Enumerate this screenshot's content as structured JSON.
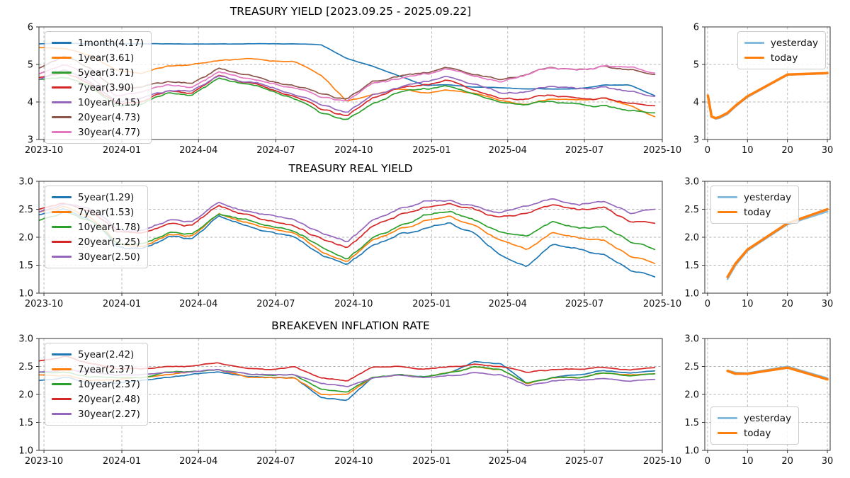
{
  "chart_data": [
    {
      "id": "treasury-yield-history",
      "type": "line",
      "title": "TREASURY YIELD [2023.09.25 - 2025.09.22]",
      "x_type": "time",
      "x_ticks": [
        {
          "f": 0.008,
          "label": "2023-10"
        },
        {
          "f": 0.133,
          "label": "2024-01"
        },
        {
          "f": 0.256,
          "label": "2024-04"
        },
        {
          "f": 0.38,
          "label": "2024-07"
        },
        {
          "f": 0.505,
          "label": "2024-10"
        },
        {
          "f": 0.63,
          "label": "2025-01"
        },
        {
          "f": 0.752,
          "label": "2025-04"
        },
        {
          "f": 0.875,
          "label": "2025-07"
        },
        {
          "f": 1.0,
          "label": "2025-10"
        }
      ],
      "x_data_end": 0.988,
      "ylim": [
        3,
        6
      ],
      "y_ticks": [
        {
          "v": 3,
          "label": "3"
        },
        {
          "v": 4,
          "label": "4"
        },
        {
          "v": 5,
          "label": "5"
        },
        {
          "v": 6,
          "label": "6"
        }
      ],
      "grid": true,
      "legend_position": "upper-left",
      "series": [
        {
          "name": "1month(4.17)",
          "color": "#1f77b4",
          "smooth": 0.2,
          "values": [
            5.55,
            5.56,
            5.55,
            5.55,
            5.55,
            5.55,
            5.55,
            5.55,
            5.55,
            5.55,
            5.55,
            5.52,
            5.15,
            4.95,
            4.7,
            4.45,
            4.45,
            4.4,
            4.38,
            4.35,
            4.35,
            4.35,
            4.45,
            4.45,
            4.17
          ]
        },
        {
          "name": "1year(3.61)",
          "color": "#ff7f0e",
          "smooth": 0.6,
          "values": [
            5.45,
            5.42,
            5.25,
            4.85,
            4.75,
            4.95,
            5.0,
            5.1,
            5.15,
            5.1,
            5.08,
            4.7,
            4.0,
            4.2,
            4.35,
            4.25,
            4.3,
            4.25,
            4.05,
            3.95,
            4.1,
            4.05,
            4.1,
            3.9,
            3.61
          ]
        },
        {
          "name": "5year(3.71)",
          "color": "#2ca02c",
          "smooth": 1,
          "values": [
            4.6,
            4.65,
            4.45,
            3.9,
            3.95,
            4.25,
            4.2,
            4.65,
            4.5,
            4.3,
            4.1,
            3.7,
            3.5,
            3.95,
            4.25,
            4.35,
            4.4,
            4.25,
            4.0,
            3.95,
            4.05,
            3.95,
            3.9,
            3.75,
            3.71
          ]
        },
        {
          "name": "7year(3.90)",
          "color": "#d62728",
          "smooth": 1,
          "values": [
            4.65,
            4.75,
            4.5,
            3.95,
            4.0,
            4.3,
            4.25,
            4.7,
            4.55,
            4.35,
            4.15,
            3.8,
            3.6,
            4.1,
            4.35,
            4.45,
            4.55,
            4.35,
            4.1,
            4.1,
            4.2,
            4.1,
            4.1,
            3.95,
            3.9
          ]
        },
        {
          "name": "10year(4.15)",
          "color": "#9467bd",
          "smooth": 1,
          "values": [
            4.6,
            4.85,
            4.55,
            4.0,
            4.1,
            4.3,
            4.3,
            4.7,
            4.55,
            4.4,
            4.2,
            3.9,
            3.7,
            4.2,
            4.4,
            4.55,
            4.65,
            4.5,
            4.25,
            4.3,
            4.45,
            4.35,
            4.4,
            4.25,
            4.15
          ]
        },
        {
          "name": "20year(4.73)",
          "color": "#8c564b",
          "smooth": 1,
          "values": [
            4.9,
            5.2,
            4.9,
            4.3,
            4.4,
            4.55,
            4.5,
            4.9,
            4.75,
            4.55,
            4.45,
            4.2,
            4.05,
            4.55,
            4.7,
            4.8,
            4.9,
            4.75,
            4.6,
            4.75,
            4.95,
            4.85,
            4.95,
            4.85,
            4.73
          ]
        },
        {
          "name": "30year(4.77)",
          "color": "#e377c2",
          "smooth": 1,
          "values": [
            4.75,
            5.0,
            4.7,
            4.15,
            4.25,
            4.45,
            4.4,
            4.8,
            4.65,
            4.5,
            4.4,
            4.1,
            4.0,
            4.5,
            4.6,
            4.75,
            4.85,
            4.7,
            4.55,
            4.75,
            4.95,
            4.85,
            4.95,
            4.9,
            4.77
          ]
        }
      ]
    },
    {
      "id": "yield-curve",
      "type": "line",
      "title": "",
      "x_type": "value",
      "xlim": [
        -0.7,
        30.7
      ],
      "x_ticks": [
        {
          "v": 0,
          "label": "0"
        },
        {
          "v": 10,
          "label": "10"
        },
        {
          "v": 20,
          "label": "20"
        },
        {
          "v": 30,
          "label": "30"
        }
      ],
      "ylim": [
        3,
        6
      ],
      "y_ticks": [
        {
          "v": 3,
          "label": "3"
        },
        {
          "v": 4,
          "label": "4"
        },
        {
          "v": 5,
          "label": "5"
        },
        {
          "v": 6,
          "label": "6"
        }
      ],
      "grid": true,
      "legend_position": "upper-right",
      "series": [
        {
          "name": "yesterday",
          "color": "#85bcdd",
          "lw": 2.5,
          "x": [
            0.08,
            1,
            2,
            3,
            5,
            7,
            10,
            20,
            30
          ],
          "values": [
            4.18,
            3.62,
            3.55,
            3.57,
            3.68,
            3.88,
            4.13,
            4.72,
            4.76
          ]
        },
        {
          "name": "today",
          "color": "#ff7f0e",
          "lw": 3.5,
          "x": [
            0.08,
            1,
            2,
            3,
            5,
            7,
            10,
            20,
            30
          ],
          "values": [
            4.17,
            3.61,
            3.57,
            3.6,
            3.71,
            3.9,
            4.15,
            4.73,
            4.77
          ]
        }
      ]
    },
    {
      "id": "treasury-real-yield-history",
      "type": "line",
      "title": "TREASURY REAL YIELD",
      "x_type": "time",
      "x_ticks": [
        {
          "f": 0.008,
          "label": "2023-10"
        },
        {
          "f": 0.133,
          "label": "2024-01"
        },
        {
          "f": 0.256,
          "label": "2024-04"
        },
        {
          "f": 0.38,
          "label": "2024-07"
        },
        {
          "f": 0.505,
          "label": "2024-10"
        },
        {
          "f": 0.63,
          "label": "2025-01"
        },
        {
          "f": 0.752,
          "label": "2025-04"
        },
        {
          "f": 0.875,
          "label": "2025-07"
        },
        {
          "f": 1.0,
          "label": "2025-10"
        }
      ],
      "x_data_end": 0.988,
      "ylim": [
        1.0,
        3.0
      ],
      "y_ticks": [
        {
          "v": 1.0,
          "label": "1.0"
        },
        {
          "v": 1.5,
          "label": "1.5"
        },
        {
          "v": 2.0,
          "label": "2.0"
        },
        {
          "v": 2.5,
          "label": "2.5"
        },
        {
          "v": 3.0,
          "label": "3.0"
        }
      ],
      "grid": true,
      "legend_position": "upper-left",
      "series": [
        {
          "name": "5year(1.29)",
          "color": "#1f77b4",
          "smooth": 1,
          "values": [
            2.4,
            2.5,
            2.3,
            1.85,
            1.75,
            2.0,
            1.95,
            2.35,
            2.2,
            2.1,
            2.0,
            1.7,
            1.5,
            1.85,
            2.05,
            2.15,
            2.25,
            2.05,
            1.7,
            1.5,
            1.9,
            1.8,
            1.7,
            1.45,
            1.29
          ]
        },
        {
          "name": "7year(1.53)",
          "color": "#ff7f0e",
          "smooth": 1,
          "values": [
            2.45,
            2.55,
            2.35,
            1.9,
            1.8,
            2.05,
            2.0,
            2.4,
            2.25,
            2.15,
            2.05,
            1.75,
            1.55,
            1.95,
            2.15,
            2.3,
            2.35,
            2.2,
            1.95,
            1.8,
            2.1,
            2.0,
            1.95,
            1.7,
            1.53
          ]
        },
        {
          "name": "10year(1.78)",
          "color": "#2ca02c",
          "smooth": 1,
          "values": [
            2.3,
            2.45,
            2.3,
            1.9,
            1.85,
            2.1,
            2.05,
            2.4,
            2.3,
            2.2,
            2.1,
            1.85,
            1.6,
            2.0,
            2.2,
            2.4,
            2.45,
            2.3,
            2.1,
            2.05,
            2.3,
            2.2,
            2.2,
            1.95,
            1.78
          ]
        },
        {
          "name": "20year(2.25)",
          "color": "#d62728",
          "smooth": 1,
          "values": [
            2.5,
            2.6,
            2.45,
            2.1,
            2.05,
            2.25,
            2.2,
            2.55,
            2.4,
            2.3,
            2.2,
            2.0,
            1.8,
            2.2,
            2.4,
            2.55,
            2.6,
            2.5,
            2.35,
            2.45,
            2.6,
            2.5,
            2.55,
            2.3,
            2.25
          ]
        },
        {
          "name": "30year(2.50)",
          "color": "#9467bd",
          "smooth": 1,
          "values": [
            2.45,
            2.6,
            2.5,
            2.15,
            2.1,
            2.3,
            2.25,
            2.6,
            2.45,
            2.4,
            2.3,
            2.1,
            1.9,
            2.3,
            2.5,
            2.65,
            2.65,
            2.55,
            2.45,
            2.6,
            2.7,
            2.6,
            2.65,
            2.45,
            2.5
          ]
        }
      ]
    },
    {
      "id": "real-yield-curve",
      "type": "line",
      "title": "",
      "x_type": "value",
      "xlim": [
        -0.7,
        30.7
      ],
      "x_ticks": [
        {
          "v": 0,
          "label": "0"
        },
        {
          "v": 10,
          "label": "10"
        },
        {
          "v": 20,
          "label": "20"
        },
        {
          "v": 30,
          "label": "30"
        }
      ],
      "ylim": [
        1.0,
        3.0
      ],
      "y_ticks": [
        {
          "v": 1.0,
          "label": "1.0"
        },
        {
          "v": 1.5,
          "label": "1.5"
        },
        {
          "v": 2.0,
          "label": "2.0"
        },
        {
          "v": 2.5,
          "label": "2.5"
        },
        {
          "v": 3.0,
          "label": "3.0"
        }
      ],
      "grid": true,
      "legend_position": "upper-left",
      "series": [
        {
          "name": "yesterday",
          "color": "#85bcdd",
          "lw": 2.5,
          "x": [
            5,
            7,
            10,
            20,
            30
          ],
          "values": [
            1.25,
            1.5,
            1.76,
            2.23,
            2.46
          ]
        },
        {
          "name": "today",
          "color": "#ff7f0e",
          "lw": 3.5,
          "x": [
            5,
            7,
            10,
            20,
            30
          ],
          "values": [
            1.29,
            1.53,
            1.78,
            2.25,
            2.5
          ]
        }
      ]
    },
    {
      "id": "breakeven-inflation-history",
      "type": "line",
      "title": "BREAKEVEN INFLATION RATE",
      "x_type": "time",
      "x_ticks": [
        {
          "f": 0.008,
          "label": "2023-10"
        },
        {
          "f": 0.133,
          "label": "2024-01"
        },
        {
          "f": 0.256,
          "label": "2024-04"
        },
        {
          "f": 0.38,
          "label": "2024-07"
        },
        {
          "f": 0.505,
          "label": "2024-10"
        },
        {
          "f": 0.63,
          "label": "2025-01"
        },
        {
          "f": 0.752,
          "label": "2025-04"
        },
        {
          "f": 0.875,
          "label": "2025-07"
        },
        {
          "f": 1.0,
          "label": "2025-10"
        }
      ],
      "x_data_end": 0.988,
      "ylim": [
        1.0,
        3.0
      ],
      "y_ticks": [
        {
          "v": 1.0,
          "label": "1.0"
        },
        {
          "v": 1.5,
          "label": "1.5"
        },
        {
          "v": 2.0,
          "label": "2.0"
        },
        {
          "v": 2.5,
          "label": "2.5"
        },
        {
          "v": 3.0,
          "label": "3.0"
        }
      ],
      "grid": true,
      "legend_position": "upper-left",
      "series": [
        {
          "name": "5year(2.42)",
          "color": "#1f77b4",
          "smooth": 1,
          "values": [
            2.25,
            2.3,
            2.2,
            2.2,
            2.25,
            2.3,
            2.35,
            2.4,
            2.35,
            2.3,
            2.3,
            1.95,
            1.9,
            2.3,
            2.35,
            2.3,
            2.4,
            2.6,
            2.55,
            2.2,
            2.3,
            2.35,
            2.45,
            2.4,
            2.42
          ]
        },
        {
          "name": "7year(2.37)",
          "color": "#ff7f0e",
          "smooth": 1,
          "values": [
            2.35,
            2.35,
            2.25,
            2.25,
            2.3,
            2.35,
            2.4,
            2.45,
            2.35,
            2.3,
            2.3,
            2.0,
            2.0,
            2.3,
            2.35,
            2.3,
            2.4,
            2.5,
            2.45,
            2.2,
            2.3,
            2.3,
            2.4,
            2.35,
            2.37
          ]
        },
        {
          "name": "10year(2.37)",
          "color": "#2ca02c",
          "smooth": 1,
          "values": [
            2.4,
            2.4,
            2.3,
            2.3,
            2.3,
            2.4,
            2.4,
            2.45,
            2.4,
            2.35,
            2.35,
            2.1,
            2.05,
            2.3,
            2.35,
            2.3,
            2.4,
            2.5,
            2.45,
            2.2,
            2.3,
            2.3,
            2.4,
            2.35,
            2.37
          ]
        },
        {
          "name": "20year(2.48)",
          "color": "#d62728",
          "smooth": 1,
          "values": [
            2.6,
            2.68,
            2.55,
            2.45,
            2.45,
            2.5,
            2.5,
            2.57,
            2.5,
            2.45,
            2.5,
            2.3,
            2.25,
            2.5,
            2.5,
            2.45,
            2.5,
            2.55,
            2.5,
            2.4,
            2.45,
            2.45,
            2.5,
            2.45,
            2.48
          ]
        },
        {
          "name": "30year(2.27)",
          "color": "#9467bd",
          "smooth": 1,
          "values": [
            2.4,
            2.45,
            2.4,
            2.35,
            2.35,
            2.4,
            2.4,
            2.45,
            2.4,
            2.35,
            2.35,
            2.2,
            2.15,
            2.3,
            2.35,
            2.3,
            2.35,
            2.4,
            2.35,
            2.15,
            2.25,
            2.25,
            2.3,
            2.25,
            2.27
          ]
        }
      ]
    },
    {
      "id": "breakeven-curve",
      "type": "line",
      "title": "",
      "x_type": "value",
      "xlim": [
        -0.7,
        30.7
      ],
      "x_ticks": [
        {
          "v": 0,
          "label": "0"
        },
        {
          "v": 10,
          "label": "10"
        },
        {
          "v": 20,
          "label": "20"
        },
        {
          "v": 30,
          "label": "30"
        }
      ],
      "ylim": [
        1.0,
        3.0
      ],
      "y_ticks": [
        {
          "v": 1.0,
          "label": "1.0"
        },
        {
          "v": 1.5,
          "label": "1.5"
        },
        {
          "v": 2.0,
          "label": "2.0"
        },
        {
          "v": 2.5,
          "label": "2.5"
        },
        {
          "v": 3.0,
          "label": "3.0"
        }
      ],
      "grid": true,
      "legend_position": "lower-left",
      "series": [
        {
          "name": "yesterday",
          "color": "#85bcdd",
          "lw": 2.5,
          "x": [
            5,
            7,
            10,
            20,
            30
          ],
          "values": [
            2.43,
            2.39,
            2.38,
            2.5,
            2.29
          ]
        },
        {
          "name": "today",
          "color": "#ff7f0e",
          "lw": 3.5,
          "x": [
            5,
            7,
            10,
            20,
            30
          ],
          "values": [
            2.42,
            2.37,
            2.37,
            2.48,
            2.27
          ]
        }
      ]
    }
  ],
  "style_colors": {
    "grid": "#b5b5b5",
    "spine": "#333333",
    "tick_text": "#111111",
    "today_accent": "#ff7f0e",
    "yesterday_accent": "#85bcdd"
  }
}
